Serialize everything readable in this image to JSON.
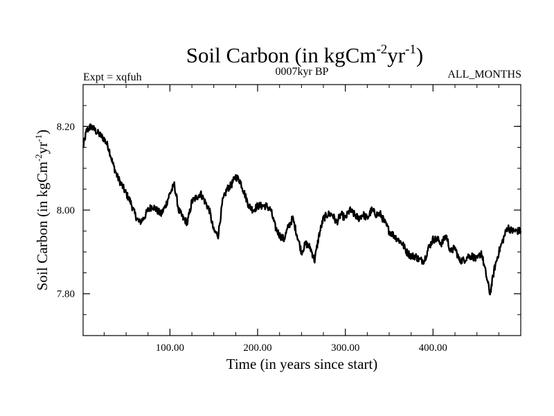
{
  "chart_data": {
    "type": "line",
    "title": "Soil Carbon (in kgCm",
    "title_sup1": "-2",
    "title_mid": "yr",
    "title_sup2": "-1",
    "title_end": ")",
    "expt_label": "Expt = xqfuh",
    "period_label": "0007kyr BP",
    "months_label": "ALL_MONTHS",
    "xlabel": "Time (in years since start)",
    "ylabel": "Soil Carbon (in kgCm",
    "ylabel_sup1": "-2",
    "ylabel_mid": "yr",
    "ylabel_sup2": "-1",
    "ylabel_end": ")",
    "xlim": [
      1,
      500
    ],
    "ylim": [
      7.7,
      8.3
    ],
    "xticks": [
      100,
      200,
      300,
      400
    ],
    "xtick_labels": [
      "100.00",
      "200.00",
      "300.00",
      "400.00"
    ],
    "yticks": [
      7.8,
      8.0,
      8.2
    ],
    "ytick_labels": [
      "7.80",
      "8.00",
      "8.20"
    ],
    "line_color": "#000000",
    "series": [
      {
        "name": "Soil Carbon",
        "x": [
          1,
          5,
          10,
          15,
          20,
          25,
          30,
          35,
          40,
          45,
          50,
          55,
          60,
          65,
          70,
          75,
          80,
          85,
          90,
          95,
          100,
          105,
          110,
          115,
          120,
          125,
          130,
          135,
          140,
          145,
          150,
          155,
          160,
          165,
          170,
          175,
          180,
          185,
          190,
          195,
          200,
          205,
          210,
          215,
          220,
          225,
          230,
          235,
          240,
          245,
          250,
          255,
          260,
          265,
          270,
          275,
          280,
          285,
          290,
          295,
          300,
          305,
          310,
          315,
          320,
          325,
          330,
          335,
          340,
          345,
          350,
          355,
          360,
          365,
          370,
          375,
          380,
          385,
          390,
          395,
          400,
          405,
          410,
          415,
          420,
          425,
          430,
          435,
          440,
          445,
          450,
          455,
          460,
          465,
          470,
          475,
          480,
          485,
          490,
          495,
          500
        ],
        "values": [
          8.15,
          8.19,
          8.2,
          8.19,
          8.18,
          8.17,
          8.15,
          8.11,
          8.08,
          8.06,
          8.04,
          8.02,
          7.99,
          7.97,
          7.98,
          8.0,
          8.01,
          8.0,
          7.99,
          8.01,
          8.04,
          8.06,
          8.0,
          7.98,
          7.97,
          8.02,
          8.03,
          8.04,
          8.02,
          8.0,
          7.95,
          7.94,
          8.02,
          8.05,
          8.06,
          8.08,
          8.07,
          8.04,
          8.01,
          8.0,
          8.01,
          8.01,
          8.01,
          8.0,
          7.96,
          7.94,
          7.93,
          7.96,
          7.98,
          7.94,
          7.9,
          7.92,
          7.91,
          7.88,
          7.94,
          7.98,
          7.99,
          7.99,
          7.97,
          7.99,
          7.98,
          8.0,
          7.99,
          7.98,
          7.99,
          7.98,
          8.0,
          7.99,
          7.99,
          7.97,
          7.95,
          7.94,
          7.93,
          7.92,
          7.9,
          7.89,
          7.89,
          7.88,
          7.88,
          7.91,
          7.93,
          7.93,
          7.92,
          7.94,
          7.9,
          7.91,
          7.88,
          7.88,
          7.89,
          7.89,
          7.88,
          7.9,
          7.85,
          7.8,
          7.86,
          7.9,
          7.93,
          7.96,
          7.95,
          7.95,
          7.95
        ]
      }
    ]
  }
}
